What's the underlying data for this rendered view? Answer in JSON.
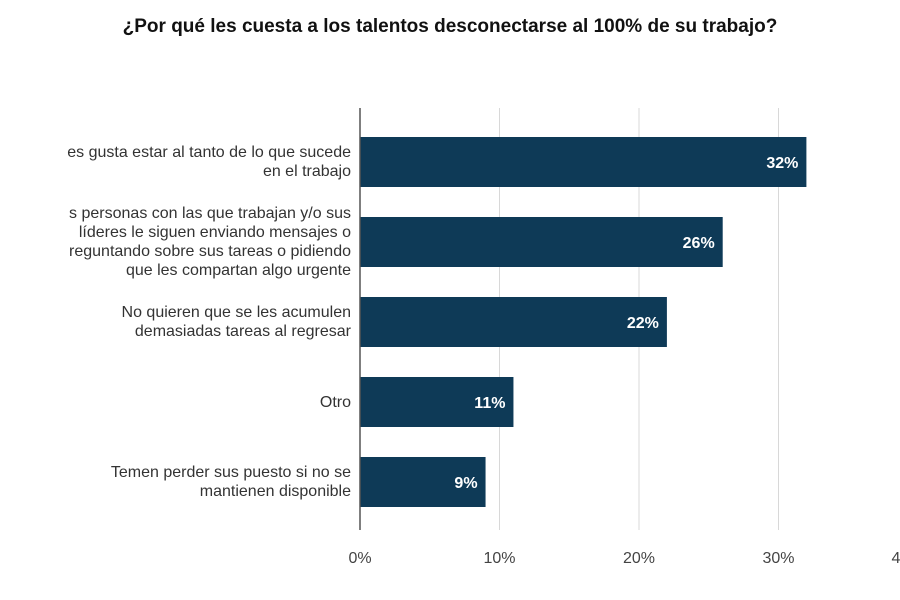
{
  "chart_data": {
    "type": "bar",
    "orientation": "horizontal",
    "title": "¿Por qué les cuesta a los talentos desconectarse al 100% de su trabajo?",
    "categories": [
      "es gusta estar al tanto de lo que sucede\nen el trabajo",
      "s personas con las que trabajan y/o sus\nlíderes le siguen enviando mensajes o\nreguntando sobre sus tareas o pidiendo\nque les compartan algo urgente",
      "No quieren que se les acumulen\ndemasiadas tareas al regresar",
      "Otro",
      "Temen perder sus puesto si no se\nmantienen disponible"
    ],
    "values": [
      32,
      26,
      22,
      11,
      9
    ],
    "data_labels": [
      "32%",
      "26%",
      "22%",
      "11%",
      "9%"
    ],
    "xlim": [
      0,
      40
    ],
    "x_ticks": [
      "0%",
      "10%",
      "20%",
      "30%",
      "4"
    ],
    "grid": true,
    "bar_color": "#0e3a57"
  }
}
